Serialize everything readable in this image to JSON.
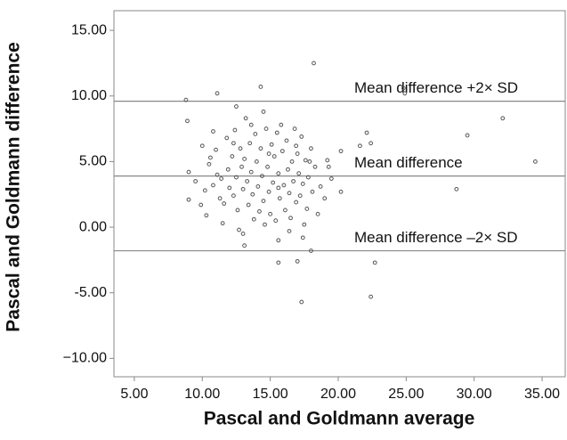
{
  "chart_data": {
    "type": "scatter",
    "x_label": "Pascal and Goldmann average",
    "y_label": "Pascal and Goldmann difference",
    "xlim": [
      3.5,
      36.7
    ],
    "ylim": [
      -11.4,
      16.5
    ],
    "xticks": [
      {
        "value": 5,
        "label": "5.00"
      },
      {
        "value": 10,
        "label": "10.00"
      },
      {
        "value": 15,
        "label": "15.00"
      },
      {
        "value": 20,
        "label": "20.00"
      },
      {
        "value": 25,
        "label": "25.00"
      },
      {
        "value": 30,
        "label": "30.00"
      },
      {
        "value": 35,
        "label": "35.00"
      }
    ],
    "yticks": [
      {
        "value": -10,
        "label": "−10.00"
      },
      {
        "value": -5,
        "label": "-5.00"
      },
      {
        "value": 0,
        "label": "0.00"
      },
      {
        "value": 5,
        "label": "5.00"
      },
      {
        "value": 10,
        "label": "10.00"
      },
      {
        "value": 15,
        "label": "15.00"
      }
    ],
    "reference_lines": [
      {
        "value": 9.6,
        "label": "Mean difference +2× SD"
      },
      {
        "value": 3.9,
        "label": "Mean difference"
      },
      {
        "value": -1.8,
        "label": "Mean difference –2× SD"
      }
    ],
    "color": "#555555",
    "x": [
      18.2,
      14.3,
      24.8,
      24.9,
      8.8,
      11.1,
      12.5,
      14.5,
      32.1,
      29.5,
      34.5,
      28.7,
      22.1,
      21.6,
      22.4,
      15.6,
      17.0,
      22.7,
      17.3,
      22.4,
      13.1,
      13.0,
      8.9,
      9.0,
      9.0,
      10.3,
      15.6,
      18.0,
      17.4,
      20.2,
      19.3,
      20.2,
      19.5,
      9.5,
      9.9,
      10.0,
      10.2,
      10.5,
      10.6,
      10.8,
      11.0,
      11.1,
      11.3,
      11.4,
      11.6,
      11.8,
      11.9,
      12.0,
      12.2,
      12.3,
      12.4,
      12.5,
      12.6,
      12.8,
      12.9,
      13.0,
      13.1,
      13.2,
      13.3,
      13.4,
      13.5,
      13.6,
      13.7,
      13.8,
      13.9,
      14.0,
      14.1,
      14.2,
      14.3,
      14.4,
      14.5,
      14.6,
      14.7,
      14.8,
      14.9,
      15.0,
      15.1,
      15.2,
      15.3,
      15.4,
      15.5,
      15.6,
      15.7,
      15.8,
      15.9,
      16.0,
      16.1,
      16.2,
      16.3,
      16.4,
      16.5,
      16.6,
      16.7,
      16.8,
      16.9,
      17.0,
      17.1,
      17.2,
      17.3,
      17.4,
      17.5,
      17.6,
      17.7,
      17.8,
      18.0,
      18.1,
      18.3,
      18.5,
      18.7,
      19.0,
      19.2,
      11.5,
      12.7,
      16.4,
      12.3,
      13.6,
      10.8,
      14.9,
      15.6,
      16.9,
      17.9
    ],
    "y": [
      12.5,
      10.7,
      10.6,
      10.2,
      9.7,
      10.2,
      9.2,
      8.8,
      8.3,
      7.0,
      5.0,
      2.9,
      7.2,
      6.2,
      6.4,
      -2.7,
      -2.6,
      -2.7,
      -5.7,
      -5.3,
      -1.4,
      -0.5,
      8.1,
      4.2,
      2.1,
      0.9,
      -1.0,
      -1.8,
      -0.8,
      2.7,
      4.6,
      5.8,
      3.7,
      3.5,
      1.7,
      6.2,
      2.8,
      4.8,
      5.3,
      3.2,
      5.9,
      4.0,
      2.2,
      3.7,
      1.8,
      6.8,
      4.4,
      3.0,
      5.4,
      2.4,
      7.4,
      3.8,
      1.3,
      6.0,
      4.6,
      2.9,
      5.2,
      8.3,
      3.5,
      1.7,
      6.4,
      4.2,
      2.5,
      0.6,
      7.1,
      5.0,
      3.1,
      1.2,
      6.0,
      3.9,
      2.0,
      0.2,
      7.5,
      4.6,
      2.7,
      1.0,
      6.3,
      3.4,
      5.4,
      0.5,
      7.2,
      4.1,
      2.2,
      7.8,
      5.8,
      3.2,
      1.3,
      6.6,
      4.4,
      2.6,
      0.7,
      5.0,
      3.5,
      7.5,
      1.9,
      5.6,
      4.1,
      2.4,
      6.9,
      3.3,
      0.2,
      5.1,
      1.4,
      3.8,
      6.0,
      2.7,
      4.6,
      1.0,
      3.1,
      2.2,
      5.1,
      0.3,
      -0.2,
      -0.3,
      6.4,
      7.8,
      7.3,
      5.6,
      3.0,
      6.2,
      5.0
    ]
  }
}
